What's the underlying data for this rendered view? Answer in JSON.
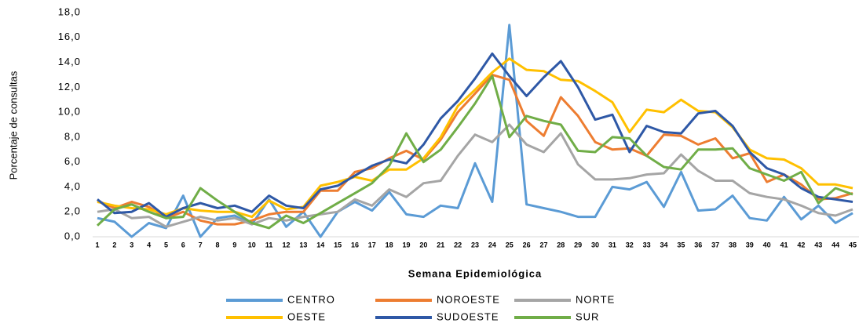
{
  "chart_data": {
    "type": "line",
    "y_label": "Porcentaje de consultas",
    "x_label": "Semana Epidemiológica",
    "categories": [
      "1",
      "2",
      "3",
      "4",
      "5",
      "6",
      "7",
      "8",
      "9",
      "10",
      "11",
      "12",
      "13",
      "14",
      "15",
      "16",
      "17",
      "18",
      "19",
      "20",
      "21",
      "22",
      "23",
      "24",
      "25",
      "26",
      "27",
      "28",
      "29",
      "30",
      "31",
      "32",
      "33",
      "34",
      "35",
      "36",
      "37",
      "38",
      "39",
      "40",
      "41",
      "42",
      "43",
      "44",
      "45"
    ],
    "ylim": [
      0,
      18
    ],
    "yticks": [
      {
        "value": 0,
        "label": "0,0"
      },
      {
        "value": 2,
        "label": "2,0"
      },
      {
        "value": 4,
        "label": "4,0"
      },
      {
        "value": 6,
        "label": "6,0"
      },
      {
        "value": 8,
        "label": "8,0"
      },
      {
        "value": 10,
        "label": "10,0"
      },
      {
        "value": 12,
        "label": "12,0"
      },
      {
        "value": 14,
        "label": "14,0"
      },
      {
        "value": 16,
        "label": "16,0"
      },
      {
        "value": 18,
        "label": "18,0"
      }
    ],
    "grid": false,
    "legend": "bottom",
    "series": [
      {
        "name": "CENTRO",
        "color": "#5b9bd5",
        "values": [
          1.5,
          1.2,
          0.0,
          1.1,
          0.7,
          3.3,
          0.0,
          1.5,
          1.7,
          1.0,
          3.0,
          0.8,
          2.0,
          0.0,
          2.0,
          2.8,
          2.1,
          3.6,
          1.8,
          1.6,
          2.5,
          2.3,
          5.9,
          2.8,
          17.0,
          2.6,
          2.3,
          2.0,
          1.6,
          1.6,
          4.0,
          3.8,
          4.4,
          2.4,
          5.2,
          2.1,
          2.2,
          3.3,
          1.5,
          1.3,
          3.2,
          1.4,
          2.5,
          1.1,
          1.9
        ]
      },
      {
        "name": "NOROESTE",
        "color": "#ed7d31",
        "values": [
          2.9,
          2.3,
          2.8,
          2.4,
          1.5,
          2.0,
          1.3,
          1.0,
          1.0,
          1.3,
          1.8,
          2.0,
          2.0,
          3.7,
          3.7,
          5.2,
          5.5,
          6.3,
          6.9,
          6.2,
          7.8,
          10.0,
          11.5,
          13.0,
          12.6,
          9.3,
          8.1,
          11.2,
          9.7,
          7.6,
          7.0,
          7.1,
          6.5,
          8.2,
          8.1,
          7.4,
          7.9,
          6.3,
          6.7,
          4.4,
          5.0,
          4.2,
          3.0,
          3.1,
          3.5
        ]
      },
      {
        "name": "NORTE",
        "color": "#a5a5a5",
        "values": [
          2.0,
          2.2,
          1.5,
          1.6,
          0.8,
          1.2,
          1.6,
          1.3,
          1.5,
          1.0,
          1.5,
          1.3,
          1.6,
          1.8,
          2.0,
          3.0,
          2.5,
          3.8,
          3.2,
          4.3,
          4.5,
          6.5,
          8.2,
          7.6,
          9.0,
          7.4,
          6.8,
          8.3,
          5.8,
          4.6,
          4.6,
          4.7,
          5.0,
          5.1,
          6.6,
          5.3,
          4.5,
          4.5,
          3.5,
          3.2,
          3.0,
          2.5,
          1.9,
          1.7,
          2.2
        ]
      },
      {
        "name": "OESTE",
        "color": "#ffc000",
        "values": [
          2.8,
          2.5,
          2.3,
          2.2,
          1.8,
          2.3,
          2.1,
          2.0,
          2.0,
          1.6,
          2.9,
          2.2,
          2.4,
          4.1,
          4.4,
          4.8,
          4.5,
          5.4,
          5.4,
          6.3,
          8.0,
          10.5,
          11.8,
          13.2,
          14.3,
          13.4,
          13.3,
          12.6,
          12.5,
          11.7,
          10.8,
          8.4,
          10.2,
          10.0,
          11.0,
          10.1,
          10.0,
          8.8,
          7.0,
          6.3,
          6.2,
          5.5,
          4.2,
          4.2,
          3.9
        ]
      },
      {
        "name": "SUDOESTE",
        "color": "#2e58a6",
        "values": [
          3.0,
          1.9,
          2.0,
          2.7,
          1.6,
          2.3,
          2.7,
          2.3,
          2.5,
          2.0,
          3.3,
          2.5,
          2.3,
          3.8,
          4.1,
          4.9,
          5.7,
          6.2,
          5.9,
          7.4,
          9.5,
          10.9,
          12.7,
          14.7,
          12.9,
          11.3,
          12.8,
          14.1,
          12.0,
          9.4,
          9.8,
          6.8,
          8.9,
          8.4,
          8.3,
          9.9,
          10.1,
          8.9,
          6.8,
          5.5,
          5.0,
          3.9,
          3.2,
          3.0,
          2.8
        ]
      },
      {
        "name": "SUR",
        "color": "#70ad47",
        "values": [
          0.9,
          2.2,
          2.6,
          2.0,
          1.5,
          1.6,
          3.9,
          2.9,
          2.0,
          1.1,
          0.7,
          1.7,
          1.1,
          1.9,
          2.7,
          3.5,
          4.3,
          5.7,
          8.3,
          6.0,
          7.0,
          8.8,
          10.7,
          12.9,
          8.0,
          9.7,
          9.3,
          9.0,
          6.9,
          6.8,
          8.0,
          7.9,
          6.5,
          5.6,
          5.4,
          7.0,
          7.0,
          7.1,
          5.5,
          5.0,
          4.5,
          5.2,
          2.7,
          3.9,
          3.4
        ]
      }
    ]
  }
}
